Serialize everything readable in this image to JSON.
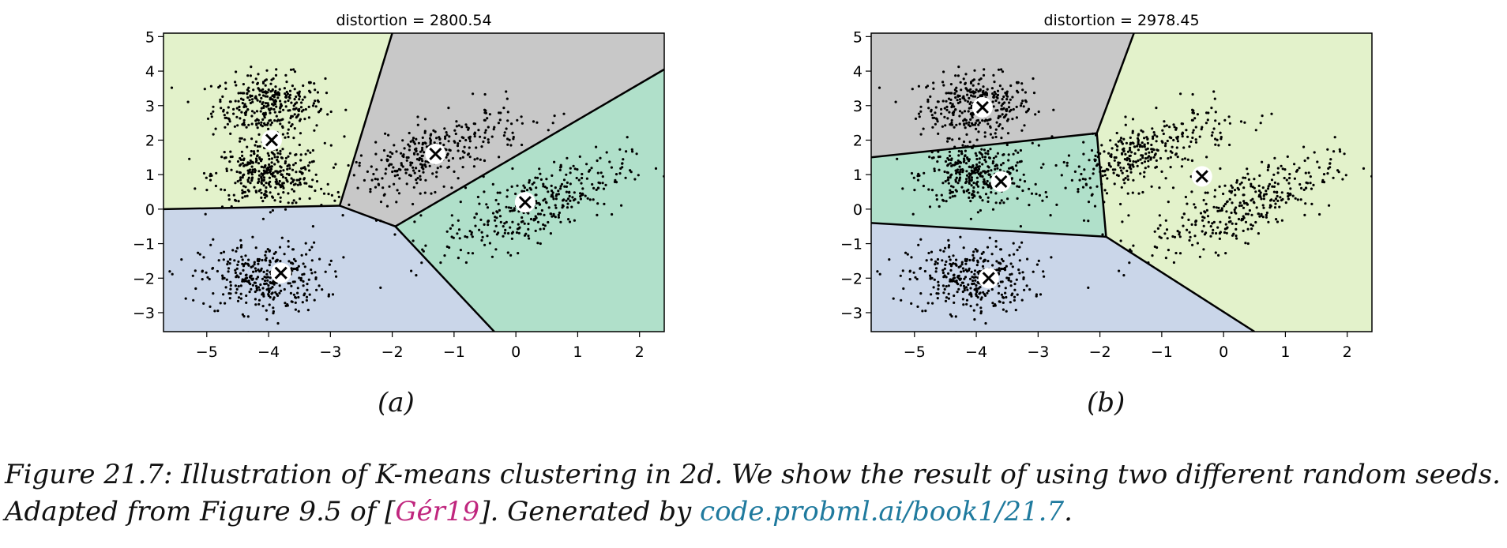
{
  "chart_data": [
    {
      "type": "scatter",
      "title": "distortion = 2800.54",
      "panel_label": "(a)",
      "xlim": [
        -5.7,
        2.4
      ],
      "ylim": [
        -3.55,
        5.1
      ],
      "xticks": [
        -5,
        -4,
        -3,
        -2,
        -1,
        0,
        1,
        2
      ],
      "yticks": [
        -3,
        -2,
        -1,
        0,
        1,
        2,
        3,
        4,
        5
      ],
      "centroids": [
        [
          -3.95,
          2.0
        ],
        [
          -1.3,
          1.6
        ],
        [
          0.15,
          0.2
        ],
        [
          -3.8,
          -1.85
        ]
      ],
      "regions": [
        {
          "color": "#e3f2cb",
          "polygon": [
            [
              -5.7,
              5.1
            ],
            [
              -2.0,
              5.1
            ],
            [
              -2.85,
              0.1
            ],
            [
              -5.7,
              0.0
            ]
          ]
        },
        {
          "color": "#c8c8c8",
          "polygon": [
            [
              -2.0,
              5.1
            ],
            [
              2.4,
              5.1
            ],
            [
              2.4,
              4.05
            ],
            [
              -1.95,
              -0.5
            ],
            [
              -2.85,
              0.1
            ]
          ]
        },
        {
          "color": "#b0e0ca",
          "polygon": [
            [
              2.4,
              4.05
            ],
            [
              2.4,
              -3.55
            ],
            [
              -0.35,
              -3.55
            ],
            [
              -1.95,
              -0.5
            ]
          ]
        },
        {
          "color": "#cad6e9",
          "polygon": [
            [
              -5.7,
              0.0
            ],
            [
              -2.85,
              0.1
            ],
            [
              -1.95,
              -0.5
            ],
            [
              -0.35,
              -3.55
            ],
            [
              -5.7,
              -3.55
            ]
          ]
        }
      ],
      "boundaries": [
        [
          [
            -2.0,
            5.1
          ],
          [
            -2.85,
            0.1
          ]
        ],
        [
          [
            -5.7,
            0.0
          ],
          [
            -2.85,
            0.1
          ]
        ],
        [
          [
            -2.85,
            0.1
          ],
          [
            -1.95,
            -0.5
          ]
        ],
        [
          [
            -1.95,
            -0.5
          ],
          [
            2.4,
            4.05
          ]
        ],
        [
          [
            -1.95,
            -0.5
          ],
          [
            -0.35,
            -3.55
          ]
        ]
      ]
    },
    {
      "type": "scatter",
      "title": "distortion = 2978.45",
      "panel_label": "(b)",
      "xlim": [
        -5.7,
        2.4
      ],
      "ylim": [
        -3.55,
        5.1
      ],
      "xticks": [
        -5,
        -4,
        -3,
        -2,
        -1,
        0,
        1,
        2
      ],
      "yticks": [
        -3,
        -2,
        -1,
        0,
        1,
        2,
        3,
        4,
        5
      ],
      "centroids": [
        [
          -3.9,
          2.95
        ],
        [
          -3.6,
          0.8
        ],
        [
          -0.35,
          0.95
        ],
        [
          -3.8,
          -2.0
        ]
      ],
      "regions": [
        {
          "color": "#c8c8c8",
          "polygon": [
            [
              -5.7,
              5.1
            ],
            [
              -1.45,
              5.1
            ],
            [
              -2.05,
              2.2
            ],
            [
              -5.7,
              1.5
            ]
          ]
        },
        {
          "color": "#b0e0ca",
          "polygon": [
            [
              -5.7,
              1.5
            ],
            [
              -2.05,
              2.2
            ],
            [
              -1.9,
              -0.8
            ],
            [
              -5.7,
              -0.4
            ]
          ]
        },
        {
          "color": "#e3f2cb",
          "polygon": [
            [
              -1.45,
              5.1
            ],
            [
              2.4,
              5.1
            ],
            [
              2.4,
              -3.55
            ],
            [
              0.5,
              -3.55
            ],
            [
              -1.9,
              -0.8
            ],
            [
              -2.05,
              2.2
            ]
          ]
        },
        {
          "color": "#cad6e9",
          "polygon": [
            [
              -5.7,
              -0.4
            ],
            [
              -1.9,
              -0.8
            ],
            [
              0.5,
              -3.55
            ],
            [
              -5.7,
              -3.55
            ]
          ]
        }
      ],
      "boundaries": [
        [
          [
            -1.45,
            5.1
          ],
          [
            -2.05,
            2.2
          ]
        ],
        [
          [
            -5.7,
            1.5
          ],
          [
            -2.05,
            2.2
          ]
        ],
        [
          [
            -2.05,
            2.2
          ],
          [
            -1.9,
            -0.8
          ]
        ],
        [
          [
            -5.7,
            -0.4
          ],
          [
            -1.9,
            -0.8
          ]
        ],
        [
          [
            -1.9,
            -0.8
          ],
          [
            0.5,
            -3.55
          ]
        ]
      ]
    }
  ],
  "data_blobs": [
    {
      "center": [
        -4.0,
        3.0
      ],
      "sx": 0.45,
      "sy": 0.45,
      "rho": 0.0,
      "n": 340
    },
    {
      "center": [
        -4.0,
        1.0
      ],
      "sx": 0.45,
      "sy": 0.45,
      "rho": 0.0,
      "n": 340
    },
    {
      "center": [
        -4.1,
        -2.0
      ],
      "sx": 0.5,
      "sy": 0.5,
      "rho": 0.0,
      "n": 340
    },
    {
      "center": [
        -1.3,
        1.6
      ],
      "sx": 0.7,
      "sy": 0.65,
      "rho": 0.7,
      "n": 340
    },
    {
      "center": [
        0.3,
        0.1
      ],
      "sx": 0.75,
      "sy": 0.7,
      "rho": 0.7,
      "n": 340
    }
  ],
  "caption": {
    "part1": "Figure 21.7: Illustration of K-means clustering in 2d. We show the result of using two different random seeds.",
    "part2": "Adapted from Figure 9.5 of [",
    "cite": "Gér19",
    "part3": "]. Generated by ",
    "link": "code.probml.ai/book1/21.7",
    "part4": "."
  }
}
